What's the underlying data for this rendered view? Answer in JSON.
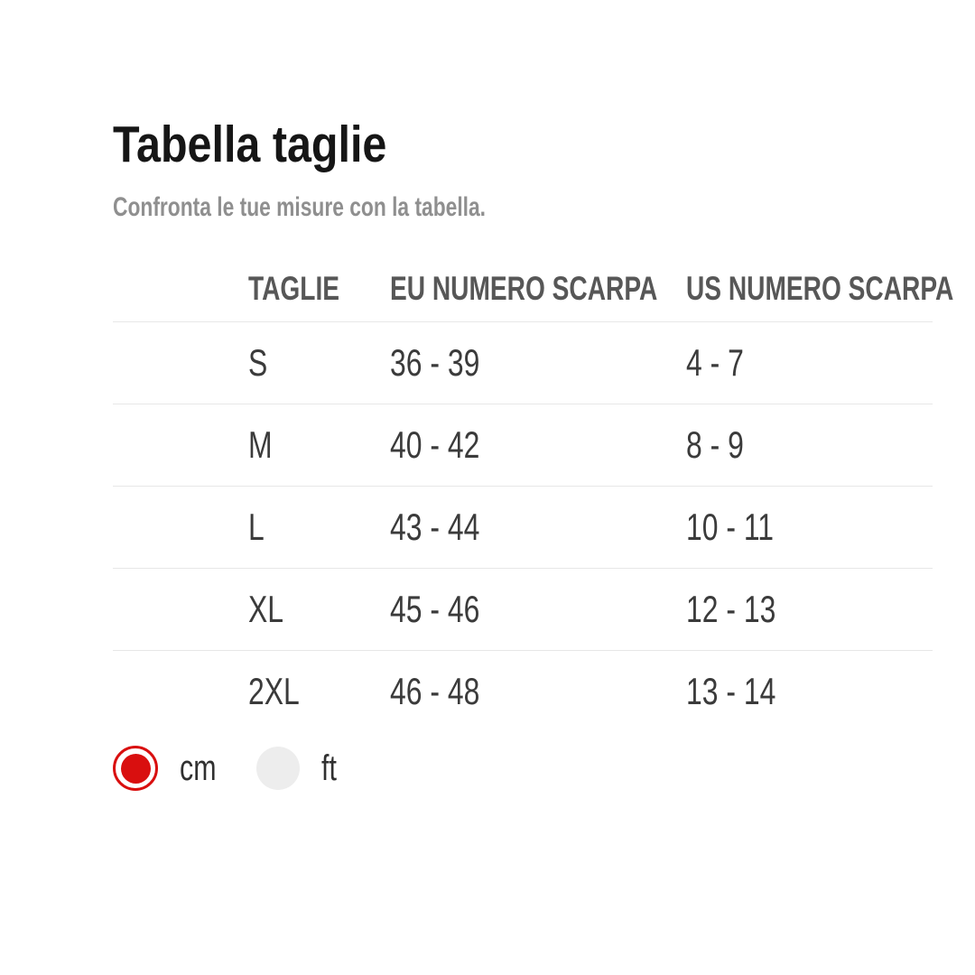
{
  "page": {
    "title": "Tabella taglie",
    "subtitle": "Confronta le tue misure con la tabella."
  },
  "table": {
    "columns": [
      "TAGLIE",
      "EU NUMERO SCARPA",
      "US NUMERO SCARPA"
    ],
    "rows": [
      {
        "taglie": "S",
        "eu": "36 - 39",
        "us": "4 - 7"
      },
      {
        "taglie": "M",
        "eu": "40 - 42",
        "us": "8 - 9"
      },
      {
        "taglie": "L",
        "eu": "43 - 44",
        "us": "10 - 11"
      },
      {
        "taglie": "XL",
        "eu": "45 - 46",
        "us": "12 - 13"
      },
      {
        "taglie": "2XL",
        "eu": "46 - 48",
        "us": "13 - 14"
      }
    ]
  },
  "unit_toggle": {
    "options": [
      {
        "label": "cm",
        "selected": true
      },
      {
        "label": "ft",
        "selected": false
      }
    ],
    "selected_color": "#d90f0f",
    "unselected_color": "#ededed"
  }
}
